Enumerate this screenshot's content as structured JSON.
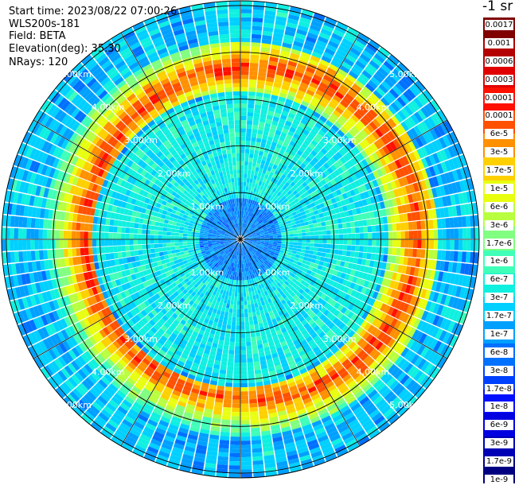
{
  "info": {
    "start_time": "Start time: 2023/08/22 07:00:26",
    "instrument": "WLS200s-181",
    "field": "Field: BETA",
    "elevation": "Elevation(deg): 35.30",
    "nrays": "NRays: 120"
  },
  "chart_data": {
    "type": "heatmap",
    "projection": "polar",
    "field": "BETA",
    "units": "-1 sr",
    "rays": 120,
    "elevation_deg": 35.3,
    "range_unit": "km",
    "range_rings_km": [
      1,
      2,
      3,
      4,
      5
    ],
    "ring_labels": [
      "1.00km",
      "2.00km",
      "3.00km",
      "4.00km",
      "5.00km"
    ],
    "radial_lines_every_deg": 30,
    "aerosol_layer_range_km": [
      3.2,
      4.2
    ],
    "colorbar": {
      "colors": [
        "#000080",
        "#0000b4",
        "#0000e0",
        "#0010ff",
        "#0040ff",
        "#0070ff",
        "#00a0ff",
        "#00d0ff",
        "#10f0e0",
        "#40ffb8",
        "#80ff80",
        "#b8ff40",
        "#e8ff10",
        "#ffd000",
        "#ff9000",
        "#ff5000",
        "#ff1000",
        "#e00000",
        "#b40000",
        "#800000"
      ],
      "tick_labels": [
        "0.0017",
        "0.001",
        "0.0006",
        "0.0003",
        "0.00017",
        "0.0001",
        "6e-5",
        "3e-5",
        "1.7e-5",
        "1e-5",
        "6e-6",
        "3e-6",
        "1.7e-6",
        "1e-6",
        "6e-7",
        "3e-7",
        "1.7e-7",
        "1e-7",
        "6e-8",
        "3e-8",
        "1.7e-8",
        "1e-8",
        "6e-9",
        "3e-9",
        "1.7e-9",
        "1e-9"
      ]
    }
  }
}
